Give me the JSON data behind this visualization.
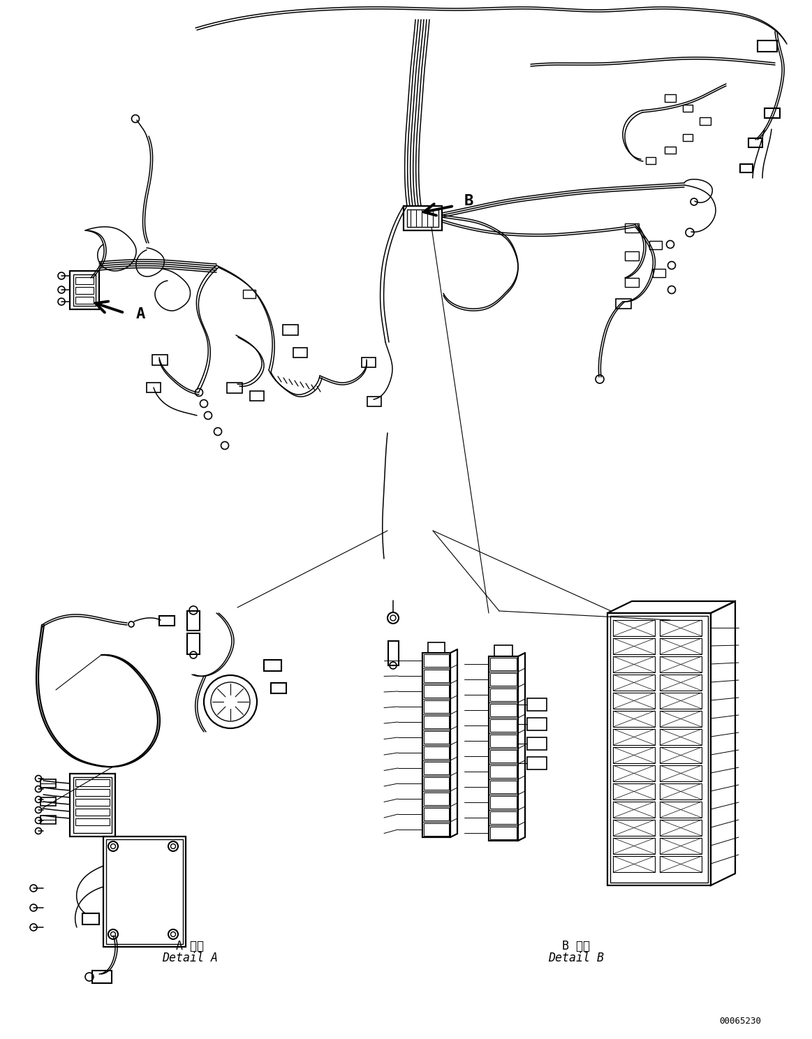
{
  "background_color": "#ffffff",
  "line_color": "#000000",
  "label_A": "A",
  "label_B": "B",
  "detail_a_japanese": "A 詳細",
  "detail_a_english": "Detail A",
  "detail_b_japanese": "B 詳細",
  "detail_b_english": "Detail B",
  "catalog_number": "00065230",
  "fig_width": 11.63,
  "fig_height": 14.88,
  "dpi": 100
}
